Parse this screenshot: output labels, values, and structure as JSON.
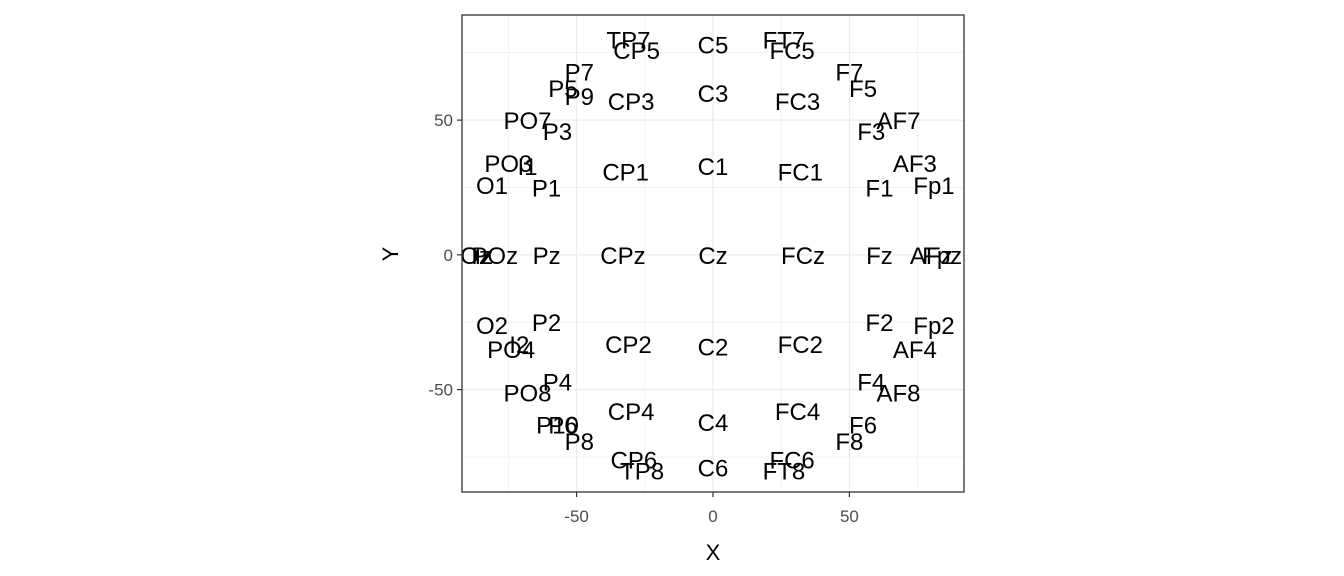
{
  "chart_data": {
    "type": "scatter",
    "title": "",
    "xlabel": "X",
    "ylabel": "Y",
    "xlim": [
      -92,
      92
    ],
    "ylim": [
      -88,
      89
    ],
    "xticks": [
      -50,
      0,
      50
    ],
    "yticks": [
      -50,
      0,
      50
    ],
    "xtick_labels": [
      "-50",
      "0",
      "50"
    ],
    "ytick_labels": [
      "-50",
      "0",
      "50"
    ],
    "grid": true,
    "legend": "none",
    "colors": {
      "background": "#ffffff",
      "panel_border": "#333333",
      "grid": "#ebebeb",
      "tick_text": "#4d4d4d",
      "label_text": "#000000"
    },
    "points": [
      {
        "label": "TP7",
        "x": -31,
        "y": 80
      },
      {
        "label": "CP5",
        "x": -28,
        "y": 76
      },
      {
        "label": "C5",
        "x": 0,
        "y": 78
      },
      {
        "label": "FT7",
        "x": 26,
        "y": 80
      },
      {
        "label": "FC5",
        "x": 29,
        "y": 76
      },
      {
        "label": "P7",
        "x": -49,
        "y": 68
      },
      {
        "label": "P5",
        "x": -55,
        "y": 62
      },
      {
        "label": "P9",
        "x": -49,
        "y": 59
      },
      {
        "label": "CP3",
        "x": -30,
        "y": 57
      },
      {
        "label": "C3",
        "x": 0,
        "y": 60
      },
      {
        "label": "FC3",
        "x": 31,
        "y": 57
      },
      {
        "label": "F7",
        "x": 50,
        "y": 68
      },
      {
        "label": "F5",
        "x": 55,
        "y": 62
      },
      {
        "label": "PO7",
        "x": -68,
        "y": 50
      },
      {
        "label": "P3",
        "x": -57,
        "y": 46
      },
      {
        "label": "AF7",
        "x": 68,
        "y": 50
      },
      {
        "label": "F3",
        "x": 58,
        "y": 46
      },
      {
        "label": "PO3",
        "x": -75,
        "y": 34
      },
      {
        "label": "I1",
        "x": -68,
        "y": 33
      },
      {
        "label": "AF3",
        "x": 74,
        "y": 34
      },
      {
        "label": "CP1",
        "x": -32,
        "y": 31
      },
      {
        "label": "C1",
        "x": 0,
        "y": 33
      },
      {
        "label": "FC1",
        "x": 32,
        "y": 31
      },
      {
        "label": "O1",
        "x": -81,
        "y": 26
      },
      {
        "label": "P1",
        "x": -61,
        "y": 25
      },
      {
        "label": "F1",
        "x": 61,
        "y": 25
      },
      {
        "label": "Fp1",
        "x": 81,
        "y": 26
      },
      {
        "label": "Oz",
        "x": -87,
        "y": 0
      },
      {
        "label": "POz",
        "x": -80,
        "y": 0
      },
      {
        "label": "Iz",
        "x": -84,
        "y": 0
      },
      {
        "label": "Pz",
        "x": -61,
        "y": 0
      },
      {
        "label": "CPz",
        "x": -33,
        "y": 0
      },
      {
        "label": "Cz",
        "x": 0,
        "y": 0
      },
      {
        "label": "FCz",
        "x": 33,
        "y": 0
      },
      {
        "label": "Fz",
        "x": 61,
        "y": 0
      },
      {
        "label": "AFz",
        "x": 80,
        "y": 0
      },
      {
        "label": "Fpz",
        "x": 84,
        "y": 0
      },
      {
        "label": "O2",
        "x": -81,
        "y": -26
      },
      {
        "label": "P2",
        "x": -61,
        "y": -25
      },
      {
        "label": "F2",
        "x": 61,
        "y": -25
      },
      {
        "label": "Fp2",
        "x": 81,
        "y": -26
      },
      {
        "label": "I2",
        "x": -71,
        "y": -33
      },
      {
        "label": "PO4",
        "x": -74,
        "y": -35
      },
      {
        "label": "CP2",
        "x": -31,
        "y": -33
      },
      {
        "label": "C2",
        "x": 0,
        "y": -34
      },
      {
        "label": "FC2",
        "x": 32,
        "y": -33
      },
      {
        "label": "AF4",
        "x": 74,
        "y": -35
      },
      {
        "label": "P4",
        "x": -57,
        "y": -47
      },
      {
        "label": "PO8",
        "x": -68,
        "y": -51
      },
      {
        "label": "F4",
        "x": 58,
        "y": -47
      },
      {
        "label": "AF8",
        "x": 68,
        "y": -51
      },
      {
        "label": "CP4",
        "x": -30,
        "y": -58
      },
      {
        "label": "C4",
        "x": 0,
        "y": -62
      },
      {
        "label": "FC4",
        "x": 31,
        "y": -58
      },
      {
        "label": "P10",
        "x": -57,
        "y": -63
      },
      {
        "label": "P6",
        "x": -55,
        "y": -63
      },
      {
        "label": "P8",
        "x": -49,
        "y": -69
      },
      {
        "label": "F6",
        "x": 55,
        "y": -63
      },
      {
        "label": "F8",
        "x": 50,
        "y": -69
      },
      {
        "label": "CP6",
        "x": -29,
        "y": -76
      },
      {
        "label": "TP8",
        "x": -26,
        "y": -80
      },
      {
        "label": "C6",
        "x": 0,
        "y": -79
      },
      {
        "label": "FC6",
        "x": 29,
        "y": -76
      },
      {
        "label": "FT8",
        "x": 26,
        "y": -80
      }
    ]
  }
}
